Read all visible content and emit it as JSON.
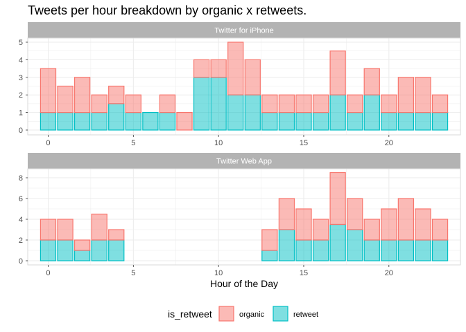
{
  "chart_data": {
    "type": "bar",
    "stacked": true,
    "title": "Tweets per hour breakdown by organic x retweets.",
    "xlabel": "Hour of the Day",
    "ylabel": "",
    "x_ticks": [
      0,
      5,
      10,
      15,
      20
    ],
    "colors": {
      "organic": "#F8766D",
      "retweet": "#00BFC4",
      "strip": "#b3b3b3"
    },
    "legend": {
      "title": "is_retweet",
      "position": "bottom",
      "entries": [
        {
          "key": "organic",
          "label": "organic"
        },
        {
          "key": "retweet",
          "label": "retweet"
        }
      ]
    },
    "panels": [
      {
        "strip": "Twitter for iPhone",
        "ylim": [
          0,
          5
        ],
        "y_ticks": [
          0,
          1,
          2,
          3,
          4,
          5
        ],
        "bars": [
          {
            "hour": 0,
            "retweet": 1,
            "organic": 2.5
          },
          {
            "hour": 1,
            "retweet": 1,
            "organic": 1.5
          },
          {
            "hour": 2,
            "retweet": 1,
            "organic": 2
          },
          {
            "hour": 3,
            "retweet": 1,
            "organic": 1
          },
          {
            "hour": 4,
            "retweet": 1.5,
            "organic": 1
          },
          {
            "hour": 5,
            "retweet": 1,
            "organic": 1
          },
          {
            "hour": 6,
            "retweet": 1,
            "organic": 0
          },
          {
            "hour": 7,
            "retweet": 1,
            "organic": 1
          },
          {
            "hour": 8,
            "retweet": 0,
            "organic": 1
          },
          {
            "hour": 9,
            "retweet": 3,
            "organic": 1
          },
          {
            "hour": 10,
            "retweet": 3,
            "organic": 1
          },
          {
            "hour": 11,
            "retweet": 2,
            "organic": 3
          },
          {
            "hour": 12,
            "retweet": 2,
            "organic": 2
          },
          {
            "hour": 13,
            "retweet": 1,
            "organic": 1
          },
          {
            "hour": 14,
            "retweet": 1,
            "organic": 1
          },
          {
            "hour": 15,
            "retweet": 1,
            "organic": 1
          },
          {
            "hour": 16,
            "retweet": 1,
            "organic": 1
          },
          {
            "hour": 17,
            "retweet": 2,
            "organic": 2.5
          },
          {
            "hour": 18,
            "retweet": 1,
            "organic": 1
          },
          {
            "hour": 19,
            "retweet": 2,
            "organic": 1.5
          },
          {
            "hour": 20,
            "retweet": 1,
            "organic": 1
          },
          {
            "hour": 21,
            "retweet": 1,
            "organic": 2
          },
          {
            "hour": 22,
            "retweet": 1,
            "organic": 2
          },
          {
            "hour": 23,
            "retweet": 1,
            "organic": 1
          }
        ]
      },
      {
        "strip": "Twitter Web App",
        "ylim": [
          0,
          8
        ],
        "y_ticks": [
          0,
          2,
          4,
          6,
          8
        ],
        "bars": [
          {
            "hour": 0,
            "retweet": 2,
            "organic": 2
          },
          {
            "hour": 1,
            "retweet": 2,
            "organic": 2
          },
          {
            "hour": 2,
            "retweet": 1,
            "organic": 1
          },
          {
            "hour": 3,
            "retweet": 2,
            "organic": 2.5
          },
          {
            "hour": 4,
            "retweet": 2,
            "organic": 1
          },
          {
            "hour": 13,
            "retweet": 1,
            "organic": 2
          },
          {
            "hour": 14,
            "retweet": 3,
            "organic": 3
          },
          {
            "hour": 15,
            "retweet": 2,
            "organic": 3
          },
          {
            "hour": 16,
            "retweet": 2,
            "organic": 2
          },
          {
            "hour": 17,
            "retweet": 3.5,
            "organic": 5
          },
          {
            "hour": 18,
            "retweet": 3,
            "organic": 3
          },
          {
            "hour": 19,
            "retweet": 2,
            "organic": 2
          },
          {
            "hour": 20,
            "retweet": 2,
            "organic": 3
          },
          {
            "hour": 21,
            "retweet": 2,
            "organic": 4
          },
          {
            "hour": 22,
            "retweet": 2,
            "organic": 3
          },
          {
            "hour": 23,
            "retweet": 2,
            "organic": 2
          }
        ]
      }
    ]
  }
}
